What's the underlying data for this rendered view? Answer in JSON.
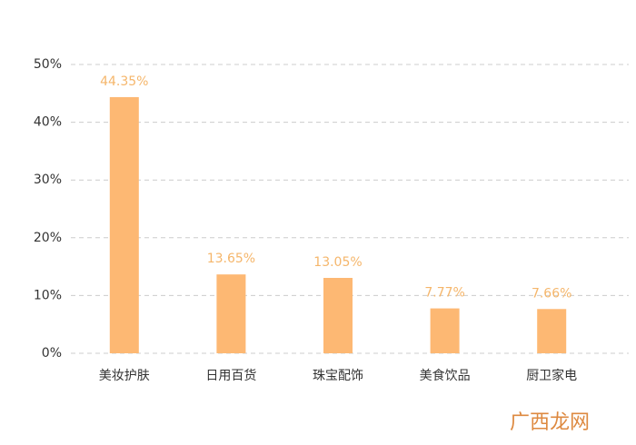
{
  "chart_data": {
    "type": "bar",
    "categories": [
      "美妆护肤",
      "日用百货",
      "珠宝配饰",
      "美食饮品",
      "厨卫家电"
    ],
    "values": [
      44.35,
      13.65,
      13.05,
      7.77,
      7.66
    ],
    "value_labels": [
      "44.35%",
      "13.65%",
      "13.05%",
      "7.77%",
      "7.66%"
    ],
    "color": "#fdb873",
    "ylim": [
      0,
      50
    ],
    "yticks": [
      {
        "value": 0,
        "label": "0%"
      },
      {
        "value": 10,
        "label": "10%"
      },
      {
        "value": 20,
        "label": "20%"
      },
      {
        "value": 30,
        "label": "30%"
      },
      {
        "value": 40,
        "label": "40%"
      },
      {
        "value": 50,
        "label": "50%"
      }
    ],
    "grid": true
  },
  "watermark": "广西龙网"
}
